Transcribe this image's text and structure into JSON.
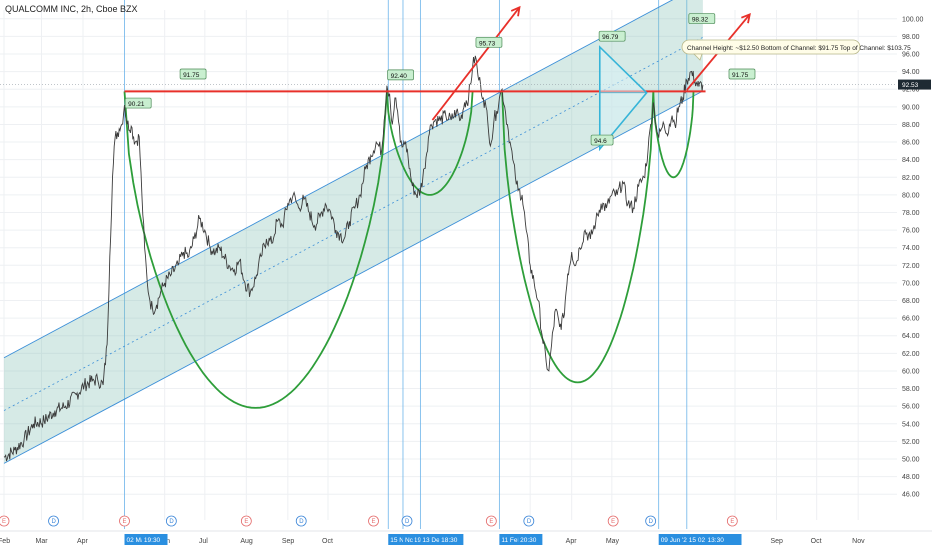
{
  "header": {
    "title": "QUALCOMM INC, 2h, Cboe BZX"
  },
  "colors": {
    "price": "#3a3a3a",
    "channel_fill": "#7fbfb0",
    "channel_border": "#3b8fd8",
    "resistance": "#e8302a",
    "cup": "#2e9e3a",
    "triangle": "#36b4d8",
    "label_fill": "#c9efd0",
    "flag": "#2a8fe0",
    "current": "#1e2a33"
  },
  "chart_data": {
    "type": "line",
    "title": "QUALCOMM INC, 2h, Cboe BZX",
    "xlabel": "",
    "ylabel": "",
    "ylim": [
      45,
      101
    ],
    "y_ticks": [
      "100.00",
      "98.00",
      "96.00",
      "94.00",
      "92.00",
      "90.00",
      "88.00",
      "86.00",
      "84.00",
      "82.00",
      "80.00",
      "78.00",
      "76.00",
      "74.00",
      "72.00",
      "70.00",
      "68.00",
      "66.00",
      "64.00",
      "62.00",
      "60.00",
      "58.00",
      "56.00",
      "54.00",
      "52.00",
      "50.00",
      "48.00",
      "46.00"
    ],
    "x_ticks": [
      {
        "label": "Feb",
        "d": 0
      },
      {
        "label": "Mar",
        "d": 28
      },
      {
        "label": "Apr",
        "d": 59
      },
      {
        "label": "Jun",
        "d": 120
      },
      {
        "label": "Jul",
        "d": 150
      },
      {
        "label": "Aug",
        "d": 181
      },
      {
        "label": "Sep",
        "d": 212
      },
      {
        "label": "Oct",
        "d": 242
      },
      {
        "label": "Mar",
        "d": 393
      },
      {
        "label": "Apr",
        "d": 424
      },
      {
        "label": "May",
        "d": 454
      },
      {
        "label": "Aug",
        "d": 546
      },
      {
        "label": "Sep",
        "d": 577
      },
      {
        "label": "Oct",
        "d": 607
      },
      {
        "label": "Nov",
        "d": 638
      }
    ],
    "date_flags": [
      {
        "label": "02 May '19",
        "d": 90
      },
      {
        "label": "19:30",
        "d": 103
      },
      {
        "label": "15 Nov '19",
        "d": 287
      },
      {
        "label": "Nc",
        "d": 298
      },
      {
        "label": "13 Dec '19",
        "d": 311
      },
      {
        "label": "18:30",
        "d": 325
      },
      {
        "label": "11 Feb '20",
        "d": 370
      },
      {
        "label": "20:30",
        "d": 384
      },
      {
        "label": "09 Jun '20",
        "d": 489
      },
      {
        "label": "15 02 Jul '20",
        "d": 510
      },
      {
        "label": "13:30",
        "d": 524
      }
    ],
    "series": [
      {
        "points": [
          [
            0,
            50.2
          ],
          [
            8,
            51.0
          ],
          [
            15,
            52.2
          ],
          [
            22,
            54.0
          ],
          [
            30,
            54.3
          ],
          [
            38,
            55.5
          ],
          [
            46,
            56.0
          ],
          [
            54,
            57.3
          ],
          [
            60,
            58.4
          ],
          [
            66,
            58.9
          ],
          [
            70,
            59.0
          ],
          [
            74,
            58.4
          ],
          [
            77,
            63.0
          ],
          [
            79,
            73.0
          ],
          [
            81,
            82.0
          ],
          [
            83,
            86.5
          ],
          [
            86,
            87.5
          ],
          [
            88,
            88.0
          ],
          [
            90,
            90.2
          ],
          [
            92,
            88.0
          ],
          [
            95,
            87.8
          ],
          [
            98,
            86.0
          ],
          [
            101,
            86.6
          ],
          [
            103,
            80.0
          ],
          [
            105,
            74.0
          ],
          [
            107,
            70.0
          ],
          [
            109,
            68.0
          ],
          [
            111,
            67.0
          ],
          [
            114,
            67.5
          ],
          [
            117,
            69.0
          ],
          [
            120,
            70.0
          ],
          [
            125,
            71.0
          ],
          [
            130,
            72.0
          ],
          [
            134,
            73.5
          ],
          [
            138,
            73.0
          ],
          [
            142,
            75.0
          ],
          [
            146,
            77.3
          ],
          [
            150,
            76.0
          ],
          [
            154,
            74.0
          ],
          [
            158,
            73.5
          ],
          [
            161,
            74.0
          ],
          [
            164,
            73.0
          ],
          [
            168,
            72.0
          ],
          [
            172,
            71.5
          ],
          [
            176,
            72.5
          ],
          [
            180,
            70.0
          ],
          [
            184,
            69.0
          ],
          [
            188,
            70.5
          ],
          [
            192,
            73.0
          ],
          [
            196,
            75.0
          ],
          [
            200,
            74.5
          ],
          [
            204,
            77.0
          ],
          [
            208,
            76.5
          ],
          [
            212,
            79.0
          ],
          [
            216,
            80.0
          ],
          [
            220,
            78.5
          ],
          [
            224,
            79.5
          ],
          [
            228,
            78.0
          ],
          [
            232,
            76.5
          ],
          [
            236,
            77.5
          ],
          [
            240,
            79.0
          ],
          [
            244,
            78.0
          ],
          [
            248,
            76.0
          ],
          [
            251,
            75.5
          ],
          [
            254,
            75.0
          ],
          [
            258,
            77.0
          ],
          [
            262,
            78.5
          ],
          [
            266,
            80.0
          ],
          [
            270,
            83.0
          ],
          [
            274,
            84.5
          ],
          [
            278,
            86.0
          ],
          [
            282,
            85.0
          ],
          [
            284,
            88.5
          ],
          [
            286,
            92.4
          ],
          [
            288,
            91.5
          ],
          [
            290,
            88.0
          ],
          [
            292,
            91.0
          ],
          [
            294,
            89.5
          ],
          [
            296,
            86.0
          ],
          [
            298,
            85.5
          ],
          [
            300,
            86.0
          ],
          [
            302,
            84.0
          ],
          [
            305,
            81.0
          ],
          [
            308,
            80.0
          ],
          [
            311,
            80.5
          ],
          [
            314,
            83.0
          ],
          [
            317,
            86.5
          ],
          [
            319,
            88.0
          ],
          [
            322,
            88.5
          ],
          [
            326,
            88.5
          ],
          [
            330,
            89.0
          ],
          [
            334,
            88.5
          ],
          [
            338,
            89.5
          ],
          [
            341,
            88.5
          ],
          [
            344,
            90.5
          ],
          [
            347,
            91.0
          ],
          [
            350,
            94.5
          ],
          [
            352,
            95.8
          ],
          [
            354,
            93.5
          ],
          [
            356,
            92.5
          ],
          [
            358,
            91.0
          ],
          [
            360,
            90.0
          ],
          [
            362,
            87.0
          ],
          [
            364,
            86.0
          ],
          [
            366,
            88.5
          ],
          [
            368,
            89.5
          ],
          [
            370,
            91.0
          ],
          [
            372,
            92.0
          ],
          [
            374,
            90.0
          ],
          [
            376,
            88.0
          ],
          [
            378,
            86.0
          ],
          [
            380,
            84.0
          ],
          [
            382,
            82.0
          ],
          [
            384,
            80.5
          ],
          [
            387,
            80.0
          ],
          [
            390,
            76.0
          ],
          [
            393,
            72.0
          ],
          [
            396,
            70.0
          ],
          [
            399,
            68.0
          ],
          [
            402,
            64.0
          ],
          [
            405,
            61.0
          ],
          [
            407,
            60.0
          ],
          [
            409,
            63.0
          ],
          [
            412,
            67.0
          ],
          [
            415,
            65.0
          ],
          [
            418,
            66.0
          ],
          [
            421,
            71.0
          ],
          [
            424,
            73.5
          ],
          [
            427,
            72.0
          ],
          [
            430,
            74.0
          ],
          [
            434,
            76.0
          ],
          [
            438,
            75.0
          ],
          [
            442,
            77.0
          ],
          [
            446,
            79.0
          ],
          [
            450,
            78.5
          ],
          [
            454,
            80.0
          ],
          [
            458,
            80.0
          ],
          [
            462,
            81.5
          ],
          [
            466,
            79.0
          ],
          [
            470,
            78.5
          ],
          [
            474,
            81.0
          ],
          [
            478,
            82.0
          ],
          [
            481,
            85.0
          ],
          [
            483,
            88.0
          ],
          [
            485,
            90.5
          ],
          [
            487,
            88.0
          ],
          [
            489,
            86.5
          ],
          [
            491,
            87.5
          ],
          [
            493,
            88.0
          ],
          [
            495,
            87.0
          ],
          [
            497,
            88.0
          ],
          [
            499,
            89.0
          ],
          [
            501,
            88.0
          ],
          [
            504,
            90.0
          ],
          [
            507,
            91.0
          ],
          [
            510,
            93.0
          ],
          [
            513,
            94.0
          ],
          [
            516,
            93.0
          ],
          [
            519,
            92.3
          ],
          [
            522,
            92.5
          ]
        ]
      }
    ],
    "channel": {
      "lower": [
        [
          0,
          49.5
        ],
        [
          522,
          91.8
        ]
      ],
      "upper": [
        [
          0,
          61.5
        ],
        [
          522,
          104.0
        ]
      ],
      "mid": [
        [
          0,
          55.5
        ],
        [
          522,
          97.9
        ]
      ]
    },
    "resistance": {
      "value": 91.75,
      "from": 90,
      "to": 524
    },
    "cups": [
      {
        "from": 90,
        "to": 286,
        "bottom": 55.8
      },
      {
        "from": 286,
        "to": 350,
        "bottom": 80.0
      },
      {
        "from": 372,
        "to": 485,
        "bottom": 58.7
      },
      {
        "from": 485,
        "to": 515,
        "bottom": 82.0
      }
    ],
    "arrows": [
      {
        "from": [
          320,
          88.5
        ],
        "to": [
          385,
          101.3
        ]
      },
      {
        "from": [
          510,
          91.9
        ],
        "to": [
          557,
          100.5
        ]
      }
    ],
    "triangle": {
      "top": [
        445,
        96.8
      ],
      "bottom": [
        445,
        85.2
      ],
      "apex": [
        480,
        91.6
      ]
    },
    "vlines": [
      90,
      287,
      298,
      311,
      370,
      489,
      510
    ],
    "price_labels": [
      {
        "text": "90.21",
        "d": 92,
        "y": 90.2
      },
      {
        "text": "91.75",
        "d": 133,
        "y": 93.5
      },
      {
        "text": "92.40",
        "d": 288,
        "y": 93.4
      },
      {
        "text": "95.73",
        "d": 354,
        "y": 97.1
      },
      {
        "text": "96.79",
        "d": 446,
        "y": 97.8
      },
      {
        "text": "98.32",
        "d": 513,
        "y": 99.8
      },
      {
        "text": "91.75",
        "d": 543,
        "y": 93.5
      },
      {
        "text": "94.6",
        "d": 440,
        "y": 86.0
      }
    ],
    "annotation": "Channel Height: ~$12.50 Bottom of Channel: $91.75 Top of Channel: $103.75",
    "current_price": {
      "text": "92.53",
      "value": 92.53
    },
    "events": [
      {
        "type": "E",
        "d": 0
      },
      {
        "type": "D",
        "d": 37
      },
      {
        "type": "E",
        "d": 90
      },
      {
        "type": "D",
        "d": 125
      },
      {
        "type": "E",
        "d": 181
      },
      {
        "type": "D",
        "d": 222
      },
      {
        "type": "E",
        "d": 276
      },
      {
        "type": "D",
        "d": 301
      },
      {
        "type": "E",
        "d": 364
      },
      {
        "type": "D",
        "d": 392
      },
      {
        "type": "E",
        "d": 455
      },
      {
        "type": "D",
        "d": 483
      },
      {
        "type": "E",
        "d": 544
      }
    ]
  }
}
